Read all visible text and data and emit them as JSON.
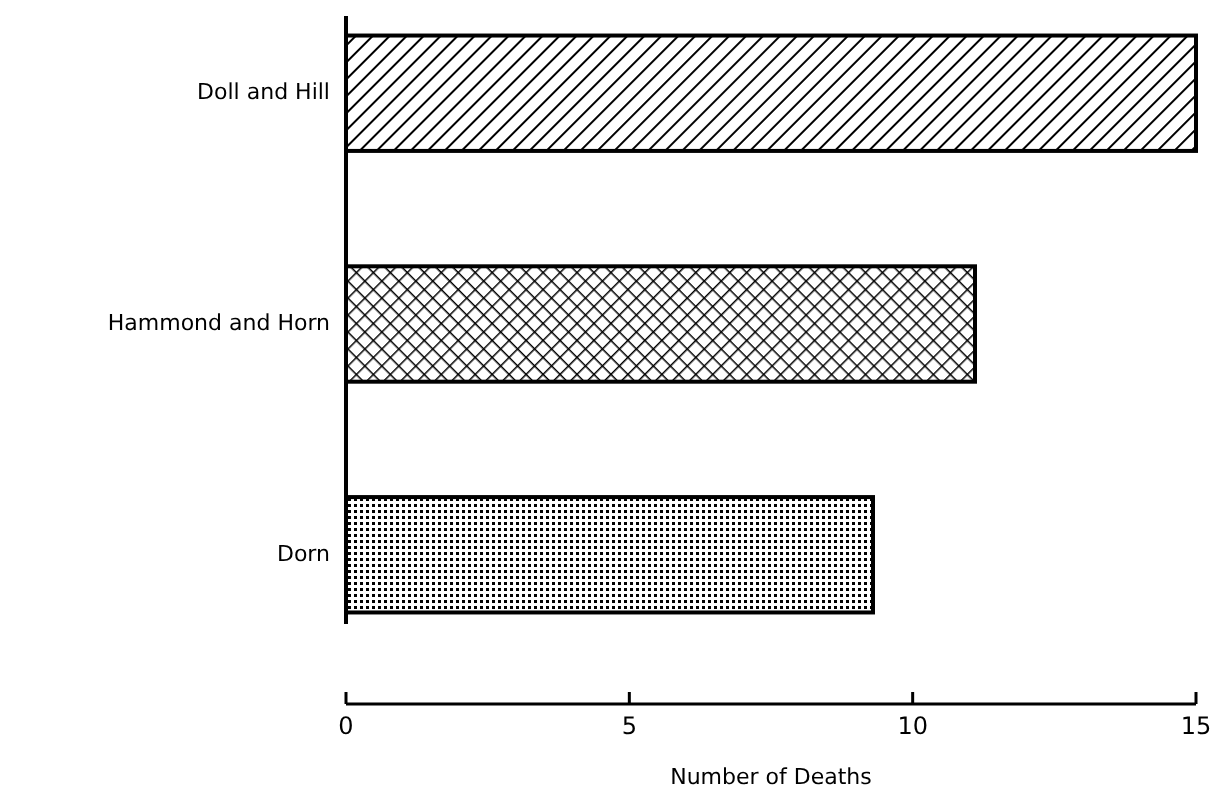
{
  "chart_data": {
    "type": "bar",
    "orientation": "horizontal",
    "xlabel": "Number of Deaths",
    "categories": [
      "Doll and Hill",
      "Hammond and Horn",
      "Dorn"
    ],
    "values": [
      15,
      11.1,
      9.3
    ],
    "colors": [
      "#000000",
      "#000000",
      "#000000"
    ],
    "xlim": [
      0,
      15
    ],
    "xticks": [
      0,
      5,
      10,
      15
    ],
    "grid": false
  }
}
